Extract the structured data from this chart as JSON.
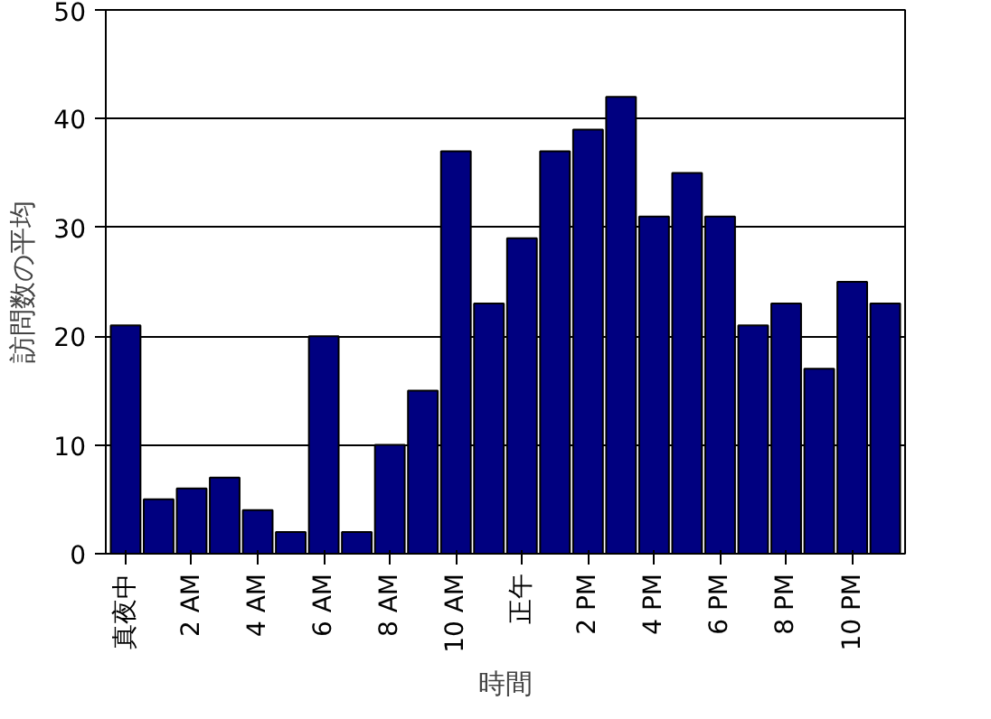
{
  "chart_data": {
    "type": "bar",
    "xlabel": "時間",
    "ylabel": "訪問数の平均",
    "categories": [
      "真夜中",
      null,
      "2 AM",
      null,
      "4 AM",
      null,
      "6 AM",
      null,
      "8 AM",
      null,
      "10 AM",
      null,
      "正午",
      null,
      "2 PM",
      null,
      "4 PM",
      null,
      "6 PM",
      null,
      "8 PM",
      null,
      "10 PM",
      null
    ],
    "values": [
      21,
      5,
      6,
      7,
      4,
      2,
      20,
      2,
      10,
      15,
      37,
      23,
      29,
      37,
      39,
      42,
      31,
      35,
      31,
      21,
      23,
      17,
      25,
      23
    ],
    "color": "#000080",
    "ylim": [
      0,
      50
    ],
    "yticks": [
      0,
      10,
      20,
      30,
      40,
      50
    ],
    "grid": "y"
  }
}
